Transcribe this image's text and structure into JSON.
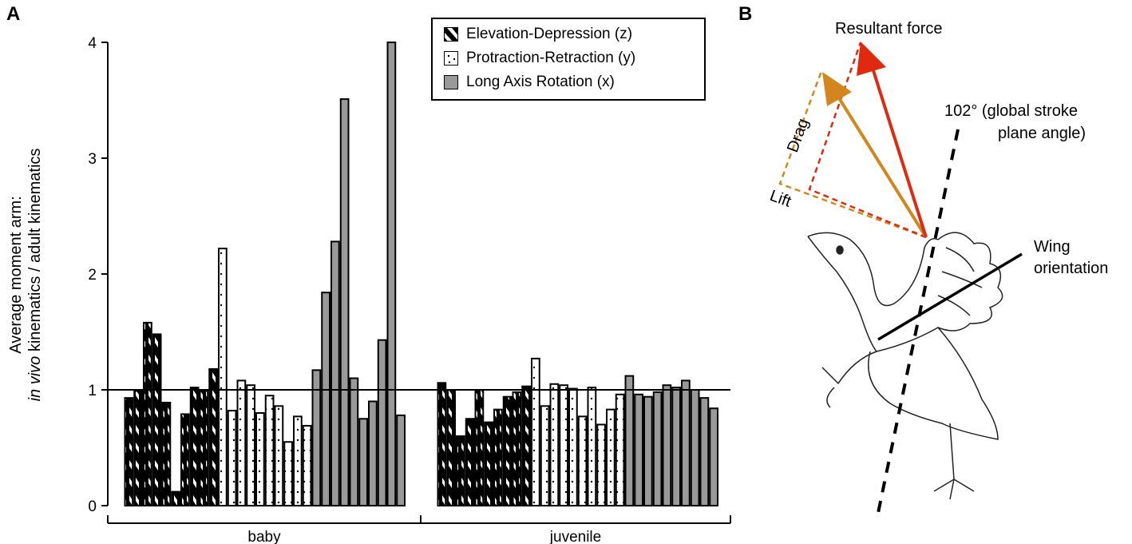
{
  "panels": {
    "a": "A",
    "b": "B"
  },
  "chart_data": {
    "type": "bar",
    "ylabel_line1": "Average moment arm:",
    "ylabel_italic": "in vivo",
    "ylabel_rest": " kinematics / adult kinematics",
    "ylim": [
      0,
      4
    ],
    "yticks": [
      "0",
      "1",
      "2",
      "3",
      "4"
    ],
    "reference_line": 1,
    "groups": [
      "baby",
      "juvenile"
    ],
    "legend": [
      {
        "label": "Elevation-Depression (z)",
        "pattern": "hatched"
      },
      {
        "label": "Protraction-Retraction (y)",
        "pattern": "dotted"
      },
      {
        "label": "Long Axis Rotation (x)",
        "pattern": "gray"
      }
    ],
    "series": [
      {
        "group": "baby",
        "name": "Elevation-Depression (z)",
        "values": [
          0.93,
          0.99,
          1.58,
          1.48,
          0.89,
          0.12,
          0.79,
          1.02,
          0.99,
          1.18
        ]
      },
      {
        "group": "baby",
        "name": "Protraction-Retraction (y)",
        "values": [
          2.22,
          0.82,
          1.08,
          1.04,
          0.8,
          0.95,
          0.86,
          0.55,
          0.77,
          0.69
        ]
      },
      {
        "group": "baby",
        "name": "Long Axis Rotation (x)",
        "values": [
          1.17,
          1.84,
          2.28,
          3.51,
          1.1,
          0.75,
          0.9,
          1.43,
          4.0,
          0.78
        ]
      },
      {
        "group": "juvenile",
        "name": "Elevation-Depression (z)",
        "values": [
          1.06,
          1.0,
          0.6,
          0.75,
          1.0,
          0.72,
          0.83,
          0.94,
          0.98,
          1.03
        ]
      },
      {
        "group": "juvenile",
        "name": "Protraction-Retraction (y)",
        "values": [
          1.27,
          0.86,
          1.05,
          1.04,
          1.01,
          0.77,
          1.02,
          0.7,
          0.83,
          0.96
        ]
      },
      {
        "group": "juvenile",
        "name": "Long Axis Rotation (x)",
        "values": [
          1.12,
          0.96,
          0.94,
          0.98,
          1.04,
          1.02,
          1.08,
          1.0,
          0.93,
          0.84
        ]
      }
    ]
  },
  "diagram": {
    "resultant": "Resultant force",
    "drag": "Drag",
    "lift": "Lift",
    "angle_line1": "102° (global stroke",
    "angle_line2": "plane angle)",
    "wing_line1": "Wing",
    "wing_line2": "orientation",
    "colors": {
      "orange": "#D4861E",
      "red": "#E02A10",
      "gray": "#999999"
    }
  }
}
